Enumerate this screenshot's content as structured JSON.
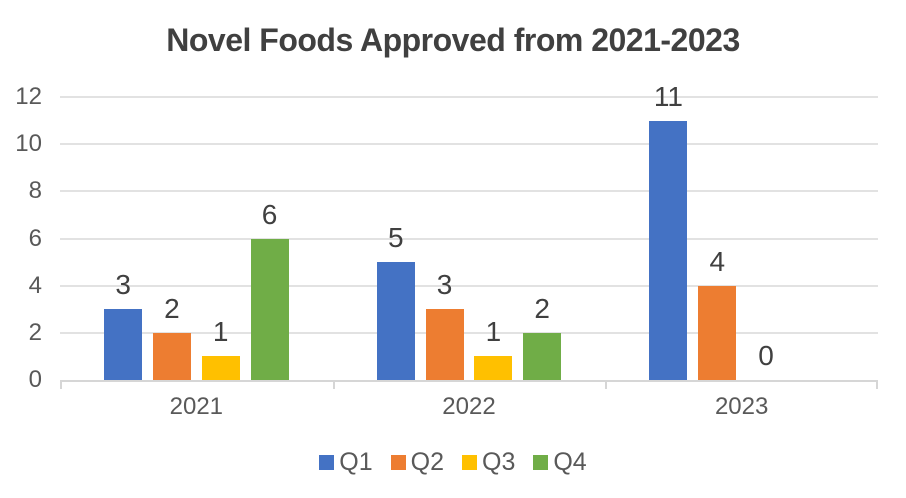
{
  "chart_data": {
    "type": "bar",
    "title": "Novel Foods Approved from 2021-2023",
    "xlabel": "",
    "ylabel": "",
    "categories": [
      "2021",
      "2022",
      "2023"
    ],
    "series": [
      {
        "name": "Q1",
        "color": "#4472C4",
        "values": [
          3,
          5,
          11
        ]
      },
      {
        "name": "Q2",
        "color": "#ED7D31",
        "values": [
          2,
          3,
          4
        ]
      },
      {
        "name": "Q3",
        "color": "#FFC000",
        "values": [
          1,
          1,
          0
        ]
      },
      {
        "name": "Q4",
        "color": "#70AD47",
        "values": [
          6,
          2,
          null
        ]
      }
    ],
    "ylim": [
      0,
      12
    ],
    "yticks": [
      0,
      2,
      4,
      6,
      8,
      10,
      12
    ],
    "grid": true,
    "data_labels": true,
    "legend_position": "bottom",
    "style": {
      "title_color": "#404040",
      "axis_text_color": "#595959",
      "value_label_color": "#404040",
      "gridline_color": "#E2E2E2",
      "axis_line_color": "#D6D6D6",
      "background": "#FFFFFF"
    }
  }
}
